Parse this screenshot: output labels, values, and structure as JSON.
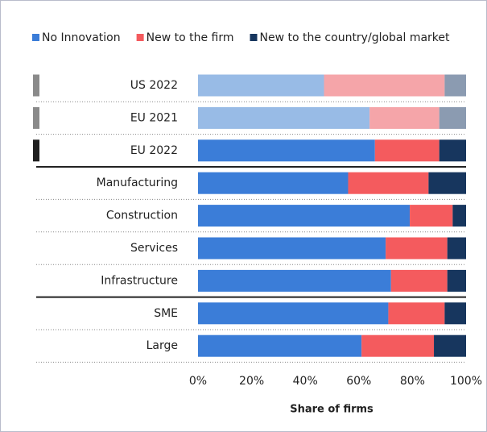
{
  "chart_data": {
    "type": "stacked-hbar",
    "categories": [
      "US 2022",
      "EU 2021",
      "EU 2022",
      "Manufacturing",
      "Construction",
      "Services",
      "Infrastructure",
      "SME",
      "Large"
    ],
    "series": [
      {
        "name": "No Innovation",
        "color": "#3b7dd8",
        "faded_color": "#98bbe6",
        "values": [
          47,
          64,
          66,
          56,
          79,
          70,
          72,
          71,
          61
        ]
      },
      {
        "name": "New to the firm",
        "color": "#f45b5e",
        "faded_color": "#f5a5a9",
        "values": [
          45,
          26,
          24,
          30,
          16,
          23,
          21,
          21,
          27
        ]
      },
      {
        "name": "New to the country/global market",
        "color": "#17365e",
        "faded_color": "#8b9bb1",
        "values": [
          8,
          10,
          10,
          14,
          5,
          7,
          7,
          8,
          12
        ]
      }
    ],
    "faded": [
      true,
      true,
      false,
      false,
      false,
      false,
      false,
      false,
      false
    ],
    "markers": [
      "#8a8a8a",
      "#8a8a8a",
      "#1f1f1f",
      null,
      null,
      null,
      null,
      null,
      null
    ],
    "xlim": [
      0,
      100
    ],
    "xticks": [
      {
        "value": 0,
        "label": "0%"
      },
      {
        "value": 20,
        "label": "20%"
      },
      {
        "value": 40,
        "label": "40%"
      },
      {
        "value": 60,
        "label": "60%"
      },
      {
        "value": 80,
        "label": "80%"
      },
      {
        "value": 100,
        "label": "100%"
      }
    ],
    "xlabel": "Share of firms",
    "legend": "top"
  }
}
